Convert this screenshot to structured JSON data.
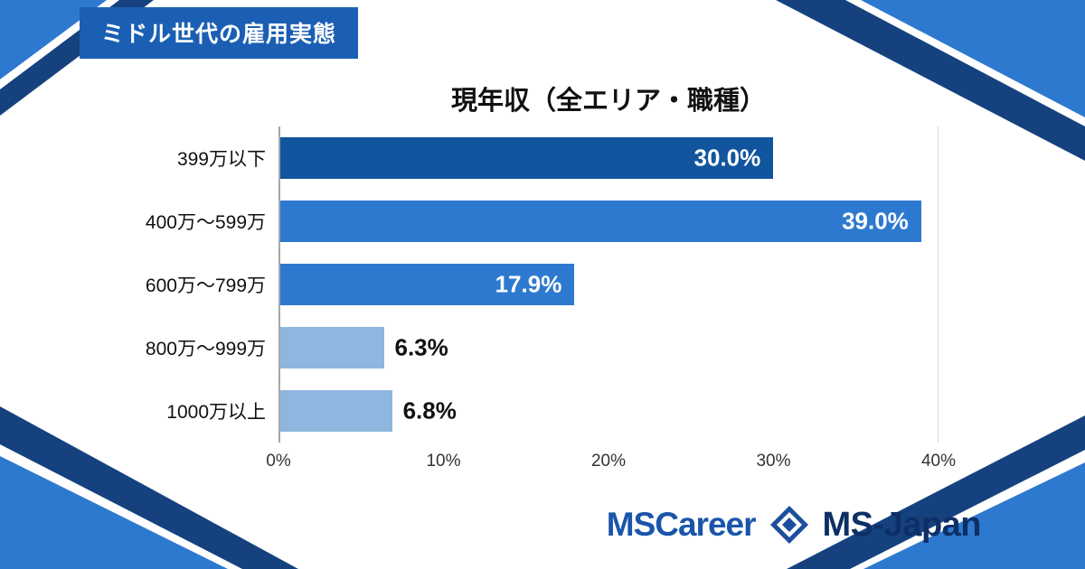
{
  "badge": {
    "label": "ミドル世代の雇用実態"
  },
  "chart_data": {
    "type": "bar",
    "orientation": "horizontal",
    "title": "現年収（全エリア・職種）",
    "categories": [
      "399万以下",
      "400万〜599万",
      "600万〜799万",
      "800万〜999万",
      "1000万以上"
    ],
    "values": [
      30.0,
      39.0,
      17.9,
      6.3,
      6.8
    ],
    "value_labels": [
      "30.0%",
      "39.0%",
      "17.9%",
      "6.3%",
      "6.8%"
    ],
    "label_placement": [
      "inside",
      "inside",
      "inside",
      "outside",
      "outside"
    ],
    "bar_colors": [
      "#11559f",
      "#2e79d0",
      "#2e79d0",
      "#8fb6de",
      "#8fb6de"
    ],
    "x_ticks": [
      "0%",
      "10%",
      "20%",
      "30%",
      "40%"
    ],
    "xlim": [
      0,
      40
    ],
    "grid": "vertical lines at 0% and 40% only",
    "legend": "none"
  },
  "footer": {
    "mscareer_logo": "MSCareer",
    "msjapan_logo": "MS-Japan",
    "diamond_icon": "ms-japan-diamond-icon"
  },
  "colors": {
    "badge_bg": "#1b5fb4",
    "accent_bright": "#2e79d0",
    "accent_navy": "#15427f",
    "text": "#111111",
    "axis_line": "#a6a6a6"
  }
}
